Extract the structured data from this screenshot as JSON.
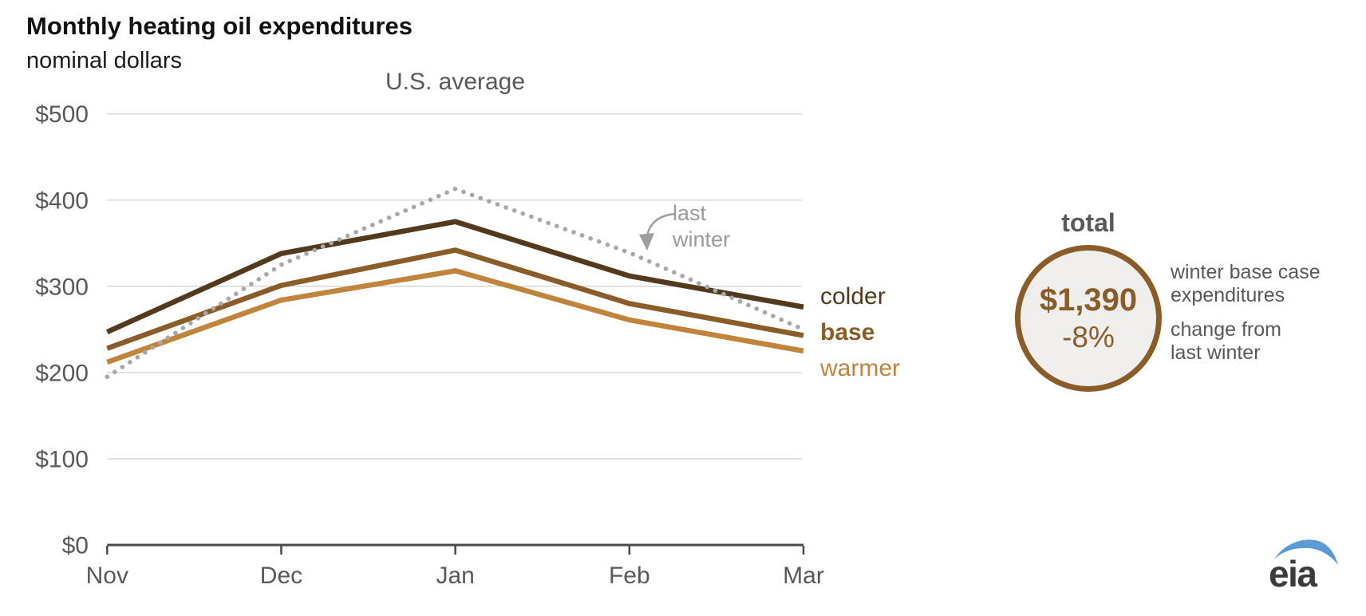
{
  "header": {
    "title": "Monthly heating oil expenditures",
    "subtitle": "nominal dollars"
  },
  "chart_data": {
    "type": "line",
    "title": "U.S. average",
    "categories": [
      "Nov",
      "Dec",
      "Jan",
      "Feb",
      "Mar"
    ],
    "series": [
      {
        "name": "colder",
        "style": "solid",
        "color": "#533a1d",
        "values": [
          247,
          338,
          375,
          312,
          276
        ]
      },
      {
        "name": "base",
        "style": "solid",
        "color": "#8a5c28",
        "values": [
          228,
          301,
          342,
          280,
          243
        ]
      },
      {
        "name": "warmer",
        "style": "solid",
        "color": "#c0843c",
        "values": [
          212,
          284,
          318,
          261,
          225
        ]
      },
      {
        "name": "last winter",
        "style": "dotted",
        "color": "#a8a8a8",
        "values": [
          195,
          325,
          413,
          339,
          250
        ]
      }
    ],
    "y_axis": {
      "range": [
        0,
        500
      ],
      "ticks": [
        {
          "value": 0,
          "label": "$0"
        },
        {
          "value": 100,
          "label": "$100"
        },
        {
          "value": 200,
          "label": "$200"
        },
        {
          "value": 300,
          "label": "$300"
        },
        {
          "value": 400,
          "label": "$400"
        },
        {
          "value": 500,
          "label": "$500"
        }
      ]
    },
    "grid": true,
    "legend_position": "right-end-labels",
    "colors": {
      "grid": "#d9d9d9",
      "axis": "#4a4a4a",
      "tick_text": "#58595b"
    }
  },
  "annotation": {
    "line1": "last",
    "line2": "winter"
  },
  "total_panel": {
    "heading": "total",
    "value": "$1,390",
    "change": "-8%",
    "desc_value_l1": "winter base case",
    "desc_value_l2": "expenditures",
    "desc_change_l1": "change from",
    "desc_change_l2": "last winter",
    "circle_border": "#8a5c28",
    "circle_fill": "#f0efee"
  },
  "logo": {
    "text": "eia",
    "swoosh_color": "#5b9bd5",
    "text_color": "#3b3b3b"
  }
}
